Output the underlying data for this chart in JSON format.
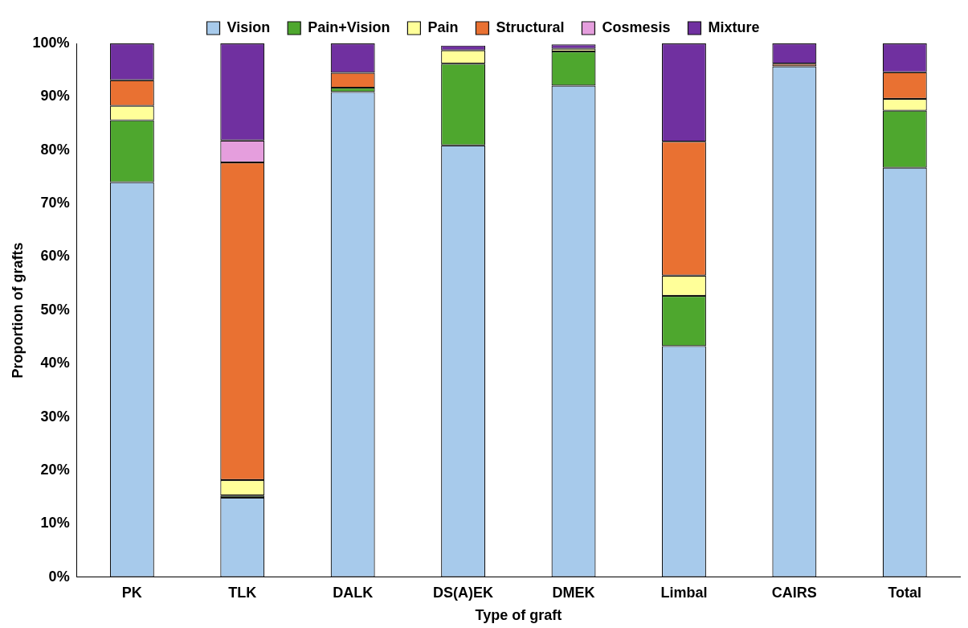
{
  "chart_data": {
    "type": "bar",
    "stacked": true,
    "xlabel": "Type of graft",
    "ylabel": "Proportion of grafts",
    "categories": [
      "PK",
      "TLK",
      "DALK",
      "DS(A)EK",
      "DMEK",
      "Limbal",
      "CAIRS",
      "Total"
    ],
    "series": [
      {
        "name": "Vision",
        "color": "#a7caeb",
        "values": [
          74.0,
          14.9,
          90.9,
          80.9,
          92.1,
          43.3,
          95.7,
          76.7
        ]
      },
      {
        "name": "Pain+Vision",
        "color": "#4ea72e",
        "values": [
          11.6,
          0.4,
          0.8,
          15.3,
          6.4,
          9.4,
          0,
          10.7
        ]
      },
      {
        "name": "Pain",
        "color": "#ffff99",
        "values": [
          2.7,
          2.9,
          0,
          2.5,
          0.5,
          3.8,
          0,
          2.2
        ]
      },
      {
        "name": "Structural",
        "color": "#e97132",
        "values": [
          4.8,
          59.5,
          2.8,
          null,
          0,
          25.1,
          0.5,
          5.0
        ]
      },
      {
        "name": "Cosmesis",
        "color": "#e59edd",
        "values": [
          0,
          4.1,
          0,
          0,
          0,
          0,
          0,
          0
        ]
      },
      {
        "name": "Mixture",
        "color": "#7030a0",
        "values": [
          6.9,
          18.2,
          5.5,
          0.9,
          0.8,
          18.4,
          3.8,
          5.4
        ]
      }
    ],
    "ylim": [
      0,
      100
    ],
    "yticks": [
      {
        "value": 0,
        "label": "0%"
      },
      {
        "value": 10,
        "label": "10%"
      },
      {
        "value": 20,
        "label": "20%"
      },
      {
        "value": 30,
        "label": "30%"
      },
      {
        "value": 40,
        "label": "40%"
      },
      {
        "value": 50,
        "label": "50%"
      },
      {
        "value": 60,
        "label": "60%"
      },
      {
        "value": 70,
        "label": "70%"
      },
      {
        "value": 80,
        "label": "80%"
      },
      {
        "value": 90,
        "label": "90%"
      },
      {
        "value": 100,
        "label": "100%"
      }
    ],
    "grid": false,
    "legend": "top"
  }
}
